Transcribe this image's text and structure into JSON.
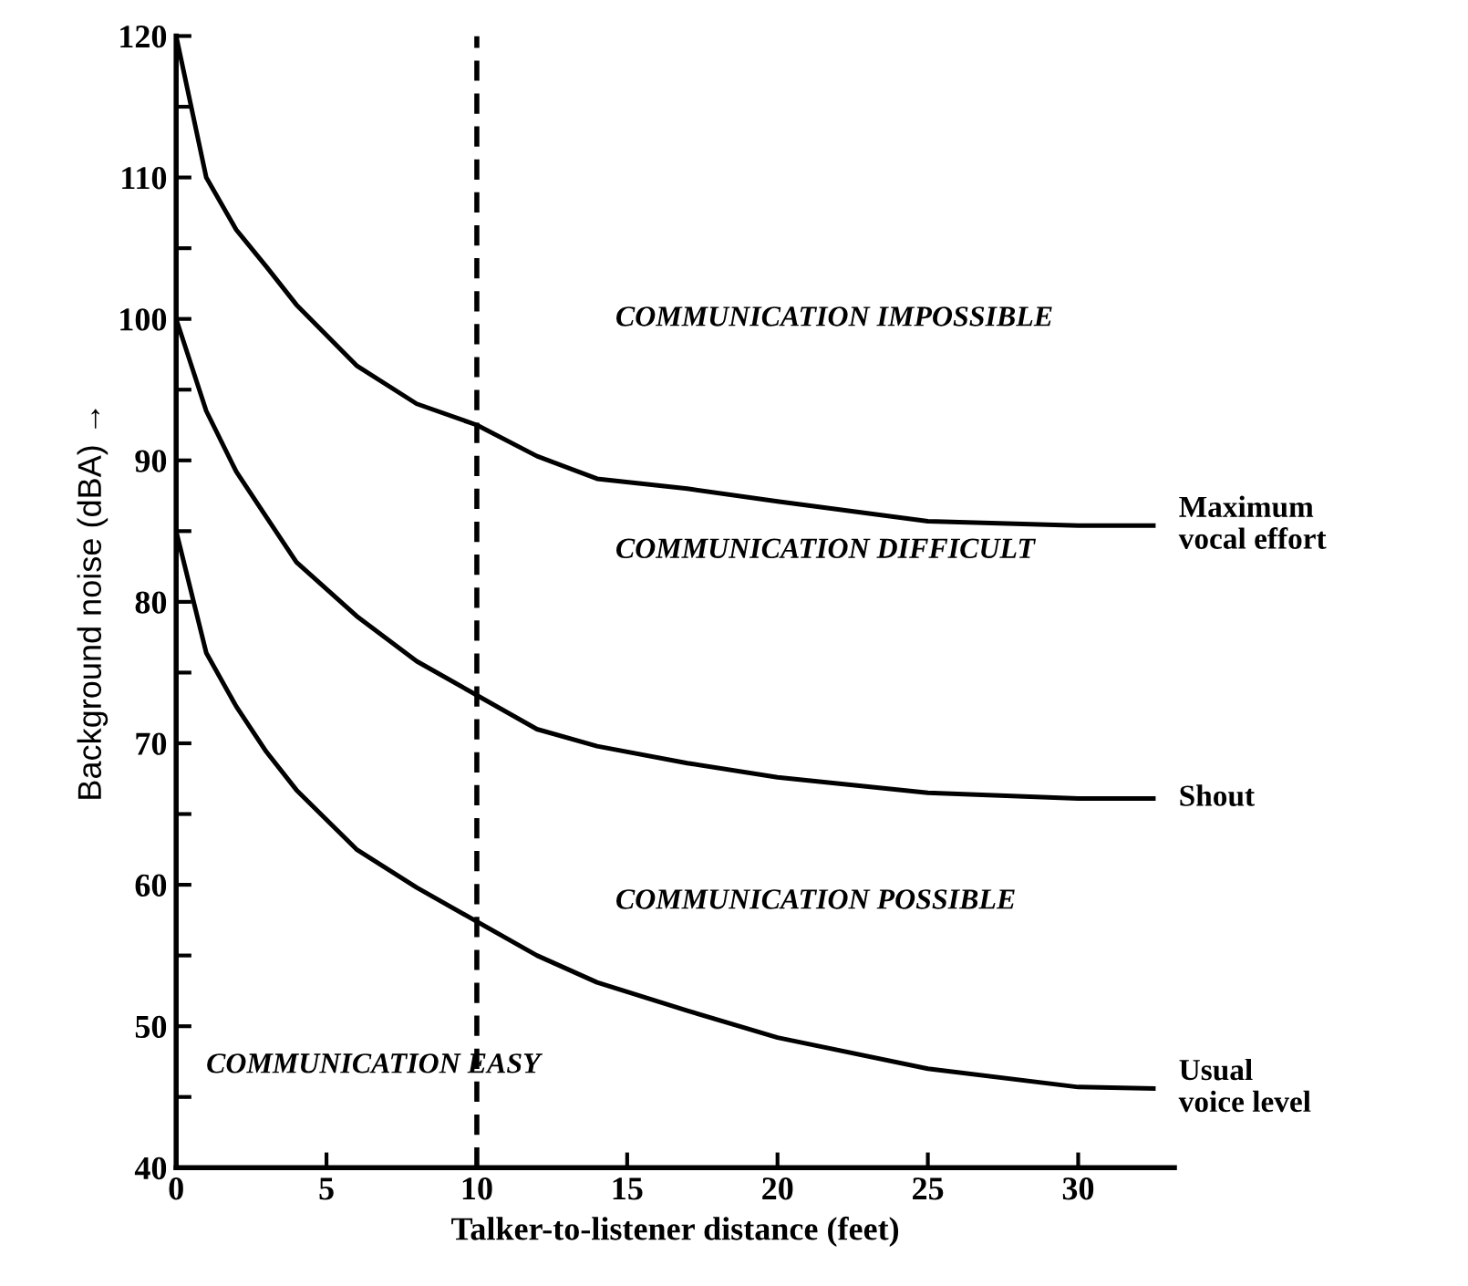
{
  "chart_data": {
    "type": "line",
    "xlabel": "Talker-to-listener distance (feet)",
    "ylabel": "Background noise (dBA) →",
    "xlim": [
      0,
      33.2
    ],
    "ylim": [
      40,
      120
    ],
    "xticks": [
      0,
      5,
      10,
      15,
      20,
      25,
      30
    ],
    "yticks": [
      40,
      {
        "value": 45,
        "label": null
      },
      50,
      {
        "value": 55,
        "label": null
      },
      60,
      {
        "value": 65,
        "label": null
      },
      70,
      {
        "value": 75,
        "label": null
      },
      80,
      {
        "value": 85,
        "label": null
      },
      90,
      {
        "value": 95,
        "label": null
      },
      100,
      {
        "value": 105,
        "label": null
      },
      110,
      {
        "value": 115,
        "label": null
      },
      120
    ],
    "x": [
      0,
      1,
      2,
      3,
      4,
      6,
      8,
      10,
      12,
      14,
      17,
      20,
      25,
      30,
      32.5
    ],
    "series": [
      {
        "name": "Maximum\nvocal effort",
        "color": "#000000",
        "values": [
          120,
          110,
          106.3,
          103.7,
          101,
          96.7,
          94,
          92.5,
          90.3,
          88.7,
          88,
          87.1,
          85.7,
          85.4,
          85.4
        ]
      },
      {
        "name": "Shout",
        "color": "#000000",
        "values": [
          100,
          93.5,
          89.2,
          86,
          82.8,
          79,
          75.8,
          73.4,
          71,
          69.8,
          68.6,
          67.6,
          66.5,
          66.1,
          66.1
        ]
      },
      {
        "name": "Usual\nvoice level",
        "color": "#000000",
        "values": [
          85,
          76.4,
          72.6,
          69.4,
          66.7,
          62.5,
          59.8,
          57.4,
          55,
          53.1,
          51.1,
          49.2,
          47,
          45.7,
          45.6
        ]
      }
    ],
    "ref_lines": [
      {
        "axis": "x",
        "value": 10,
        "label": null,
        "color": "#000000",
        "line_style": "dashed"
      }
    ],
    "annotations": [
      "COMMUNICATION IMPOSSIBLE",
      "COMMUNICATION DIFFICULT",
      "COMMUNICATION POSSIBLE",
      "COMMUNICATION EASY"
    ],
    "grid": false,
    "legend": false,
    "marker": "none",
    "line_style": "solid"
  }
}
